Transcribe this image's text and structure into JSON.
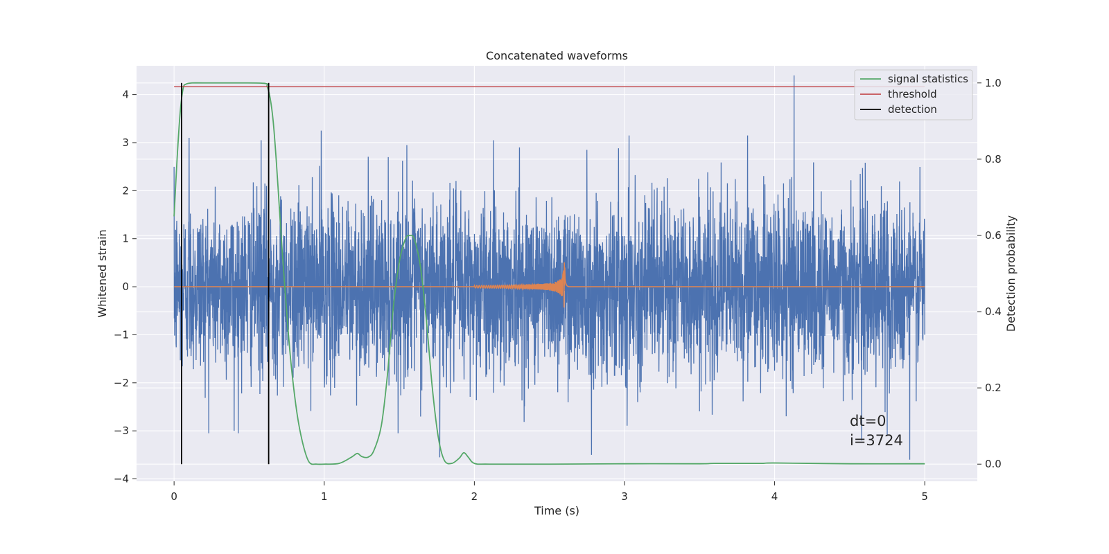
{
  "chart_data": {
    "type": "line",
    "title": "Concatenated waveforms",
    "xlabel": "Time (s)",
    "ylabel": "Whitened strain",
    "y2label": "Detection probability",
    "xlim": [
      -0.25,
      5.35
    ],
    "ylim": [
      -4.05,
      4.6
    ],
    "y2lim": [
      -0.045,
      1.045
    ],
    "xticks": [
      0,
      1,
      2,
      3,
      4,
      5
    ],
    "yticks": [
      -4,
      -3,
      -2,
      -1,
      0,
      1,
      2,
      3,
      4
    ],
    "y2ticks": [
      0.0,
      0.2,
      0.4,
      0.6,
      0.8,
      1.0
    ],
    "grid": true,
    "legend": {
      "placement": "top-right",
      "entries": [
        "signal statistics",
        "threshold",
        "detection"
      ]
    },
    "colors": {
      "strain": "#4c72b0",
      "waveform": "#dd8452",
      "signal": "#55a868",
      "threshold": "#c44e52",
      "detection": "#000000",
      "background": "#eaeaf2"
    },
    "series": [
      {
        "name": "",
        "axis": "left",
        "kind": "noise",
        "x_range": [
          0,
          5
        ],
        "sigma": 0.9,
        "peaks": [
          [
            0.1,
            3.1
          ],
          [
            0.58,
            3.05
          ],
          [
            0.98,
            3.25
          ],
          [
            1.55,
            2.95
          ],
          [
            2.3,
            2.9
          ],
          [
            2.75,
            2.85
          ],
          [
            3.03,
            3.15
          ],
          [
            3.82,
            3.15
          ],
          [
            4.13,
            4.4
          ],
          [
            4.9,
            -3.6
          ],
          [
            0.4,
            -3.0
          ],
          [
            2.78,
            -3.5
          ],
          [
            1.77,
            -3.55
          ],
          [
            4.58,
            -3.2
          ],
          [
            4.75,
            -3.1
          ]
        ]
      },
      {
        "name": "",
        "axis": "left",
        "kind": "chirp",
        "x_range": [
          0,
          5
        ],
        "chirp_start": 2.0,
        "chirp_end": 2.6,
        "max_amplitude": 0.62,
        "min_amplitude": -0.55
      },
      {
        "name": "signal statistics",
        "axis": "right",
        "x": [
          0,
          0.02,
          0.04,
          0.06,
          0.08,
          0.12,
          0.2,
          0.4,
          0.6,
          0.62,
          0.64,
          0.66,
          0.68,
          0.7,
          0.72,
          0.75,
          0.78,
          0.82,
          0.86,
          0.9,
          0.95,
          1.0,
          1.1,
          1.18,
          1.22,
          1.25,
          1.29,
          1.33,
          1.38,
          1.42,
          1.46,
          1.5,
          1.54,
          1.57,
          1.6,
          1.64,
          1.68,
          1.72,
          1.76,
          1.8,
          1.85,
          1.9,
          1.93,
          1.96,
          2.0,
          2.1,
          2.5,
          3.0,
          3.5,
          3.6,
          3.9,
          4.0,
          4.5,
          5.0
        ],
        "y": [
          0.65,
          0.8,
          0.92,
          0.985,
          0.997,
          1.0,
          1.0,
          1.0,
          0.999,
          0.99,
          0.96,
          0.9,
          0.8,
          0.68,
          0.56,
          0.4,
          0.26,
          0.13,
          0.05,
          0.005,
          0.0,
          0.0,
          0.002,
          0.018,
          0.028,
          0.02,
          0.018,
          0.035,
          0.1,
          0.23,
          0.41,
          0.53,
          0.59,
          0.6,
          0.59,
          0.52,
          0.38,
          0.2,
          0.07,
          0.01,
          0.002,
          0.016,
          0.03,
          0.018,
          0.002,
          0.0,
          0.0,
          0.001,
          0.001,
          0.002,
          0.002,
          0.003,
          0.001,
          0.001
        ]
      },
      {
        "name": "threshold",
        "axis": "right",
        "x": [
          0,
          5
        ],
        "y": [
          0.99,
          0.99
        ]
      },
      {
        "name": "detection",
        "axis": "right",
        "kind": "vlines",
        "x": [
          0.05,
          0.63
        ],
        "ymin": 0.0,
        "ymax": 1.0
      }
    ],
    "annotations": [
      "dt=0",
      "i=3724"
    ]
  }
}
